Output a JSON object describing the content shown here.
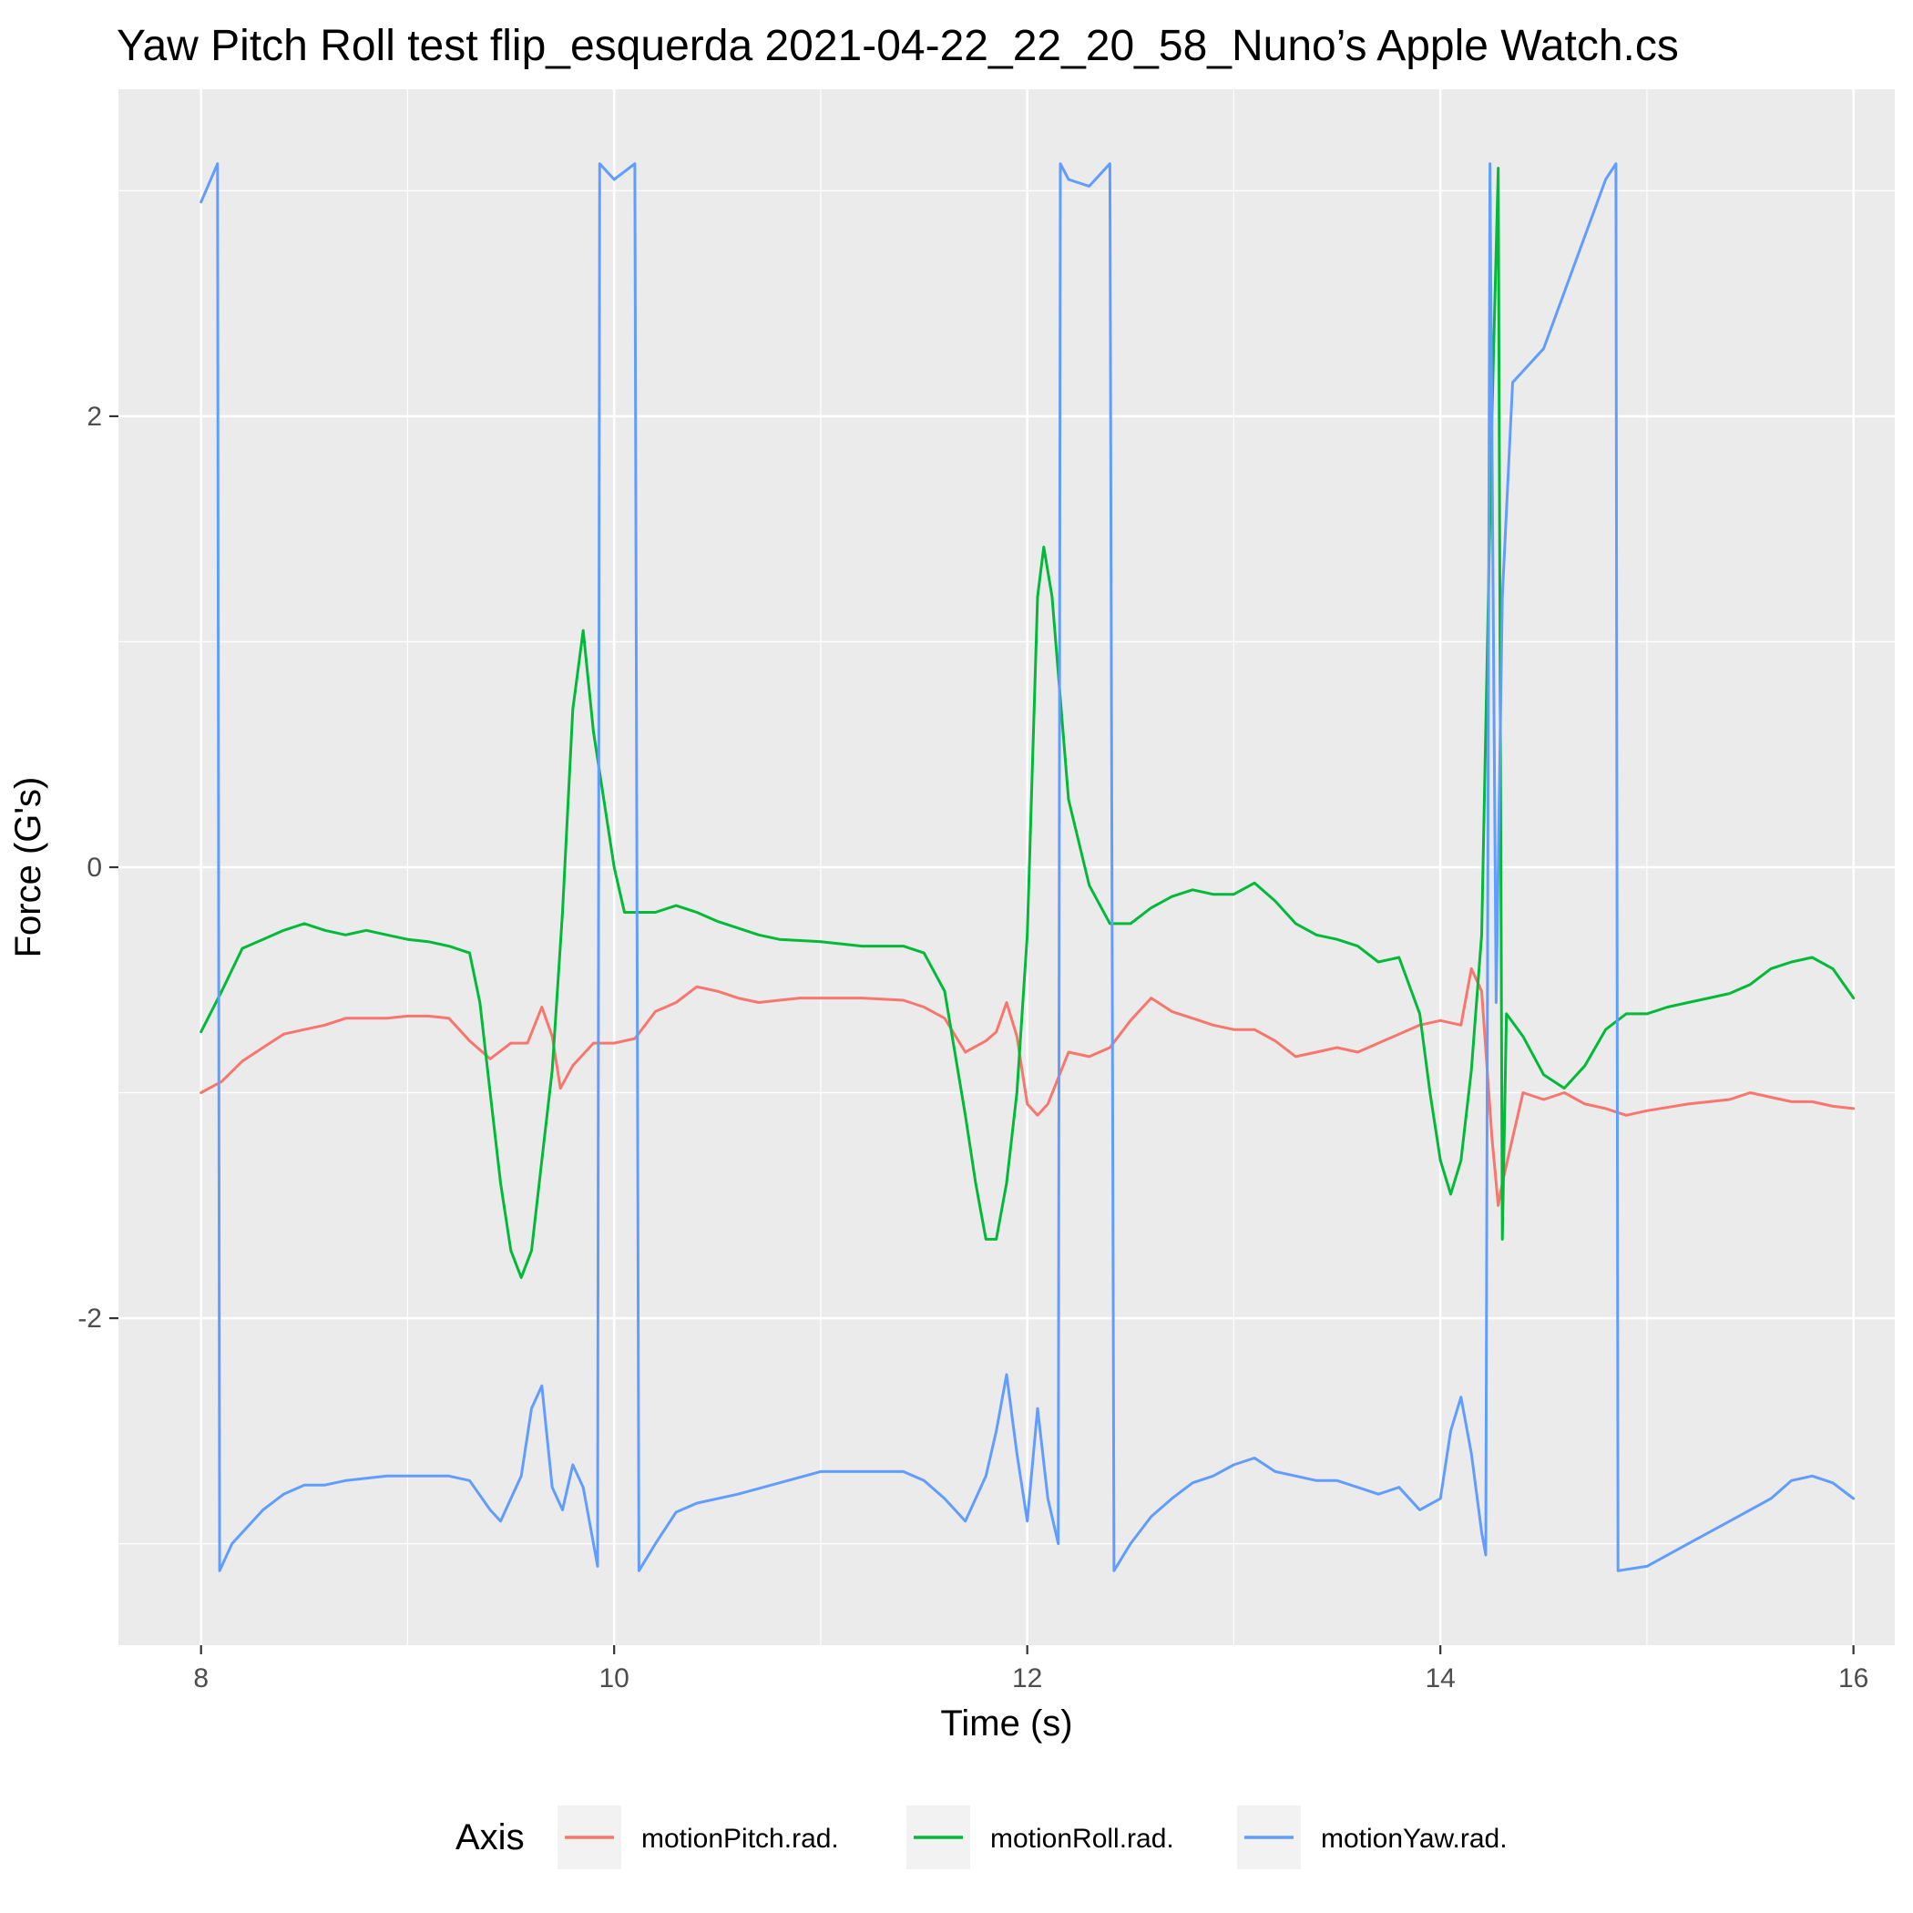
{
  "chart_data": {
    "type": "line",
    "title": "Yaw Pitch Roll test flip_esquerda 2021-04-22_22_20_58_Nuno’s Apple Watch.cs",
    "xlabel": "Time (s)",
    "ylabel": "Force (G's)",
    "xlim": [
      7.6,
      16.2
    ],
    "ylim": [
      -3.45,
      3.45
    ],
    "x_ticks": [
      8,
      10,
      12,
      14,
      16
    ],
    "x_tick_labels": [
      "8",
      "10",
      "12",
      "14",
      "16"
    ],
    "y_ticks": [
      -2,
      0,
      2
    ],
    "y_tick_labels": [
      "-2",
      "0",
      "2"
    ],
    "grid": true,
    "legend": {
      "title": "Axis",
      "position": "bottom"
    },
    "series": [
      {
        "name": "motionPitch.rad.",
        "color": "#F8766D",
        "points": [
          [
            8.0,
            -1.0
          ],
          [
            8.1,
            -0.95
          ],
          [
            8.2,
            -0.86
          ],
          [
            8.3,
            -0.8
          ],
          [
            8.4,
            -0.74
          ],
          [
            8.5,
            -0.72
          ],
          [
            8.6,
            -0.7
          ],
          [
            8.7,
            -0.67
          ],
          [
            8.8,
            -0.67
          ],
          [
            8.9,
            -0.67
          ],
          [
            9.0,
            -0.66
          ],
          [
            9.1,
            -0.66
          ],
          [
            9.2,
            -0.67
          ],
          [
            9.3,
            -0.77
          ],
          [
            9.4,
            -0.85
          ],
          [
            9.5,
            -0.78
          ],
          [
            9.58,
            -0.78
          ],
          [
            9.65,
            -0.62
          ],
          [
            9.7,
            -0.75
          ],
          [
            9.74,
            -0.98
          ],
          [
            9.8,
            -0.88
          ],
          [
            9.9,
            -0.78
          ],
          [
            10.0,
            -0.78
          ],
          [
            10.1,
            -0.76
          ],
          [
            10.2,
            -0.64
          ],
          [
            10.3,
            -0.6
          ],
          [
            10.4,
            -0.53
          ],
          [
            10.5,
            -0.55
          ],
          [
            10.6,
            -0.58
          ],
          [
            10.7,
            -0.6
          ],
          [
            10.8,
            -0.59
          ],
          [
            10.9,
            -0.58
          ],
          [
            11.0,
            -0.58
          ],
          [
            11.2,
            -0.58
          ],
          [
            11.4,
            -0.59
          ],
          [
            11.5,
            -0.62
          ],
          [
            11.6,
            -0.67
          ],
          [
            11.7,
            -0.82
          ],
          [
            11.8,
            -0.77
          ],
          [
            11.85,
            -0.73
          ],
          [
            11.9,
            -0.6
          ],
          [
            11.95,
            -0.75
          ],
          [
            12.0,
            -1.05
          ],
          [
            12.05,
            -1.1
          ],
          [
            12.1,
            -1.05
          ],
          [
            12.2,
            -0.82
          ],
          [
            12.3,
            -0.84
          ],
          [
            12.4,
            -0.8
          ],
          [
            12.5,
            -0.68
          ],
          [
            12.6,
            -0.58
          ],
          [
            12.7,
            -0.64
          ],
          [
            12.8,
            -0.67
          ],
          [
            12.9,
            -0.7
          ],
          [
            13.0,
            -0.72
          ],
          [
            13.1,
            -0.72
          ],
          [
            13.2,
            -0.77
          ],
          [
            13.3,
            -0.84
          ],
          [
            13.4,
            -0.82
          ],
          [
            13.5,
            -0.8
          ],
          [
            13.6,
            -0.82
          ],
          [
            13.7,
            -0.78
          ],
          [
            13.8,
            -0.74
          ],
          [
            13.9,
            -0.7
          ],
          [
            14.0,
            -0.68
          ],
          [
            14.1,
            -0.7
          ],
          [
            14.15,
            -0.45
          ],
          [
            14.2,
            -0.55
          ],
          [
            14.25,
            -1.2
          ],
          [
            14.28,
            -1.5
          ],
          [
            14.3,
            -1.4
          ],
          [
            14.35,
            -1.2
          ],
          [
            14.4,
            -1.0
          ],
          [
            14.5,
            -1.03
          ],
          [
            14.6,
            -1.0
          ],
          [
            14.7,
            -1.05
          ],
          [
            14.8,
            -1.07
          ],
          [
            14.9,
            -1.1
          ],
          [
            15.0,
            -1.08
          ],
          [
            15.2,
            -1.05
          ],
          [
            15.4,
            -1.03
          ],
          [
            15.5,
            -1.0
          ],
          [
            15.6,
            -1.02
          ],
          [
            15.7,
            -1.04
          ],
          [
            15.8,
            -1.04
          ],
          [
            15.9,
            -1.06
          ],
          [
            16.0,
            -1.07
          ]
        ]
      },
      {
        "name": "motionRoll.rad.",
        "color": "#00BA38",
        "points": [
          [
            8.0,
            -0.73
          ],
          [
            8.1,
            -0.55
          ],
          [
            8.2,
            -0.36
          ],
          [
            8.3,
            -0.32
          ],
          [
            8.4,
            -0.28
          ],
          [
            8.5,
            -0.25
          ],
          [
            8.6,
            -0.28
          ],
          [
            8.7,
            -0.3
          ],
          [
            8.8,
            -0.28
          ],
          [
            8.9,
            -0.3
          ],
          [
            9.0,
            -0.32
          ],
          [
            9.1,
            -0.33
          ],
          [
            9.2,
            -0.35
          ],
          [
            9.3,
            -0.38
          ],
          [
            9.35,
            -0.6
          ],
          [
            9.4,
            -1.0
          ],
          [
            9.45,
            -1.4
          ],
          [
            9.5,
            -1.7
          ],
          [
            9.55,
            -1.82
          ],
          [
            9.6,
            -1.7
          ],
          [
            9.65,
            -1.3
          ],
          [
            9.7,
            -0.9
          ],
          [
            9.75,
            -0.2
          ],
          [
            9.8,
            0.7
          ],
          [
            9.85,
            1.05
          ],
          [
            9.9,
            0.6
          ],
          [
            10.0,
            0.0
          ],
          [
            10.05,
            -0.2
          ],
          [
            10.15,
            -0.2
          ],
          [
            10.2,
            -0.2
          ],
          [
            10.3,
            -0.17
          ],
          [
            10.4,
            -0.2
          ],
          [
            10.5,
            -0.24
          ],
          [
            10.6,
            -0.27
          ],
          [
            10.7,
            -0.3
          ],
          [
            10.8,
            -0.32
          ],
          [
            11.0,
            -0.33
          ],
          [
            11.2,
            -0.35
          ],
          [
            11.4,
            -0.35
          ],
          [
            11.5,
            -0.38
          ],
          [
            11.6,
            -0.55
          ],
          [
            11.7,
            -1.1
          ],
          [
            11.75,
            -1.4
          ],
          [
            11.8,
            -1.65
          ],
          [
            11.85,
            -1.65
          ],
          [
            11.9,
            -1.4
          ],
          [
            11.95,
            -1.0
          ],
          [
            12.0,
            -0.3
          ],
          [
            12.05,
            1.2
          ],
          [
            12.08,
            1.42
          ],
          [
            12.12,
            1.2
          ],
          [
            12.2,
            0.3
          ],
          [
            12.3,
            -0.08
          ],
          [
            12.4,
            -0.25
          ],
          [
            12.5,
            -0.25
          ],
          [
            12.6,
            -0.18
          ],
          [
            12.7,
            -0.13
          ],
          [
            12.8,
            -0.1
          ],
          [
            12.9,
            -0.12
          ],
          [
            13.0,
            -0.12
          ],
          [
            13.1,
            -0.07
          ],
          [
            13.2,
            -0.15
          ],
          [
            13.3,
            -0.25
          ],
          [
            13.4,
            -0.3
          ],
          [
            13.5,
            -0.32
          ],
          [
            13.6,
            -0.35
          ],
          [
            13.7,
            -0.42
          ],
          [
            13.8,
            -0.4
          ],
          [
            13.9,
            -0.65
          ],
          [
            13.95,
            -1.0
          ],
          [
            14.0,
            -1.3
          ],
          [
            14.05,
            -1.45
          ],
          [
            14.1,
            -1.3
          ],
          [
            14.15,
            -0.9
          ],
          [
            14.2,
            -0.3
          ],
          [
            14.25,
            2.0
          ],
          [
            14.28,
            3.1
          ],
          [
            14.3,
            -1.65
          ],
          [
            14.32,
            -0.65
          ],
          [
            14.4,
            -0.75
          ],
          [
            14.5,
            -0.92
          ],
          [
            14.6,
            -0.98
          ],
          [
            14.7,
            -0.88
          ],
          [
            14.8,
            -0.72
          ],
          [
            14.9,
            -0.65
          ],
          [
            15.0,
            -0.65
          ],
          [
            15.1,
            -0.62
          ],
          [
            15.2,
            -0.6
          ],
          [
            15.3,
            -0.58
          ],
          [
            15.4,
            -0.56
          ],
          [
            15.5,
            -0.52
          ],
          [
            15.6,
            -0.45
          ],
          [
            15.7,
            -0.42
          ],
          [
            15.8,
            -0.4
          ],
          [
            15.9,
            -0.45
          ],
          [
            16.0,
            -0.58
          ]
        ]
      },
      {
        "name": "motionYaw.rad.",
        "color": "#619CFF",
        "points": [
          [
            8.0,
            2.95
          ],
          [
            8.08,
            3.12
          ],
          [
            8.09,
            -3.12
          ],
          [
            8.15,
            -3.0
          ],
          [
            8.3,
            -2.85
          ],
          [
            8.4,
            -2.78
          ],
          [
            8.5,
            -2.74
          ],
          [
            8.6,
            -2.74
          ],
          [
            8.7,
            -2.72
          ],
          [
            8.8,
            -2.71
          ],
          [
            8.9,
            -2.7
          ],
          [
            9.0,
            -2.7
          ],
          [
            9.2,
            -2.7
          ],
          [
            9.3,
            -2.72
          ],
          [
            9.4,
            -2.85
          ],
          [
            9.45,
            -2.9
          ],
          [
            9.5,
            -2.8
          ],
          [
            9.55,
            -2.7
          ],
          [
            9.6,
            -2.4
          ],
          [
            9.65,
            -2.3
          ],
          [
            9.7,
            -2.75
          ],
          [
            9.75,
            -2.85
          ],
          [
            9.8,
            -2.65
          ],
          [
            9.85,
            -2.75
          ],
          [
            9.9,
            -3.0
          ],
          [
            9.92,
            -3.1
          ],
          [
            9.93,
            3.12
          ],
          [
            10.0,
            3.05
          ],
          [
            10.1,
            3.12
          ],
          [
            10.12,
            -3.12
          ],
          [
            10.2,
            -3.0
          ],
          [
            10.3,
            -2.86
          ],
          [
            10.4,
            -2.82
          ],
          [
            10.6,
            -2.78
          ],
          [
            10.8,
            -2.73
          ],
          [
            11.0,
            -2.68
          ],
          [
            11.2,
            -2.68
          ],
          [
            11.4,
            -2.68
          ],
          [
            11.5,
            -2.72
          ],
          [
            11.6,
            -2.8
          ],
          [
            11.7,
            -2.9
          ],
          [
            11.8,
            -2.7
          ],
          [
            11.85,
            -2.5
          ],
          [
            11.9,
            -2.25
          ],
          [
            11.95,
            -2.6
          ],
          [
            12.0,
            -2.9
          ],
          [
            12.05,
            -2.4
          ],
          [
            12.1,
            -2.8
          ],
          [
            12.15,
            -3.0
          ],
          [
            12.16,
            3.12
          ],
          [
            12.2,
            3.05
          ],
          [
            12.3,
            3.02
          ],
          [
            12.4,
            3.12
          ],
          [
            12.42,
            -3.12
          ],
          [
            12.5,
            -3.0
          ],
          [
            12.6,
            -2.88
          ],
          [
            12.7,
            -2.8
          ],
          [
            12.8,
            -2.73
          ],
          [
            12.9,
            -2.7
          ],
          [
            13.0,
            -2.65
          ],
          [
            13.1,
            -2.62
          ],
          [
            13.2,
            -2.68
          ],
          [
            13.3,
            -2.7
          ],
          [
            13.4,
            -2.72
          ],
          [
            13.5,
            -2.72
          ],
          [
            13.6,
            -2.75
          ],
          [
            13.7,
            -2.78
          ],
          [
            13.8,
            -2.75
          ],
          [
            13.9,
            -2.85
          ],
          [
            14.0,
            -2.8
          ],
          [
            14.05,
            -2.5
          ],
          [
            14.1,
            -2.35
          ],
          [
            14.15,
            -2.6
          ],
          [
            14.2,
            -2.95
          ],
          [
            14.22,
            -3.05
          ],
          [
            14.24,
            3.12
          ],
          [
            14.27,
            -0.6
          ],
          [
            14.3,
            1.2
          ],
          [
            14.35,
            2.15
          ],
          [
            14.4,
            2.2
          ],
          [
            14.5,
            2.3
          ],
          [
            14.6,
            2.55
          ],
          [
            14.7,
            2.8
          ],
          [
            14.8,
            3.05
          ],
          [
            14.85,
            3.12
          ],
          [
            14.86,
            -3.12
          ],
          [
            15.0,
            -3.1
          ],
          [
            15.2,
            -3.0
          ],
          [
            15.4,
            -2.9
          ],
          [
            15.5,
            -2.85
          ],
          [
            15.6,
            -2.8
          ],
          [
            15.7,
            -2.72
          ],
          [
            15.8,
            -2.7
          ],
          [
            15.9,
            -2.73
          ],
          [
            16.0,
            -2.8
          ]
        ]
      }
    ]
  }
}
